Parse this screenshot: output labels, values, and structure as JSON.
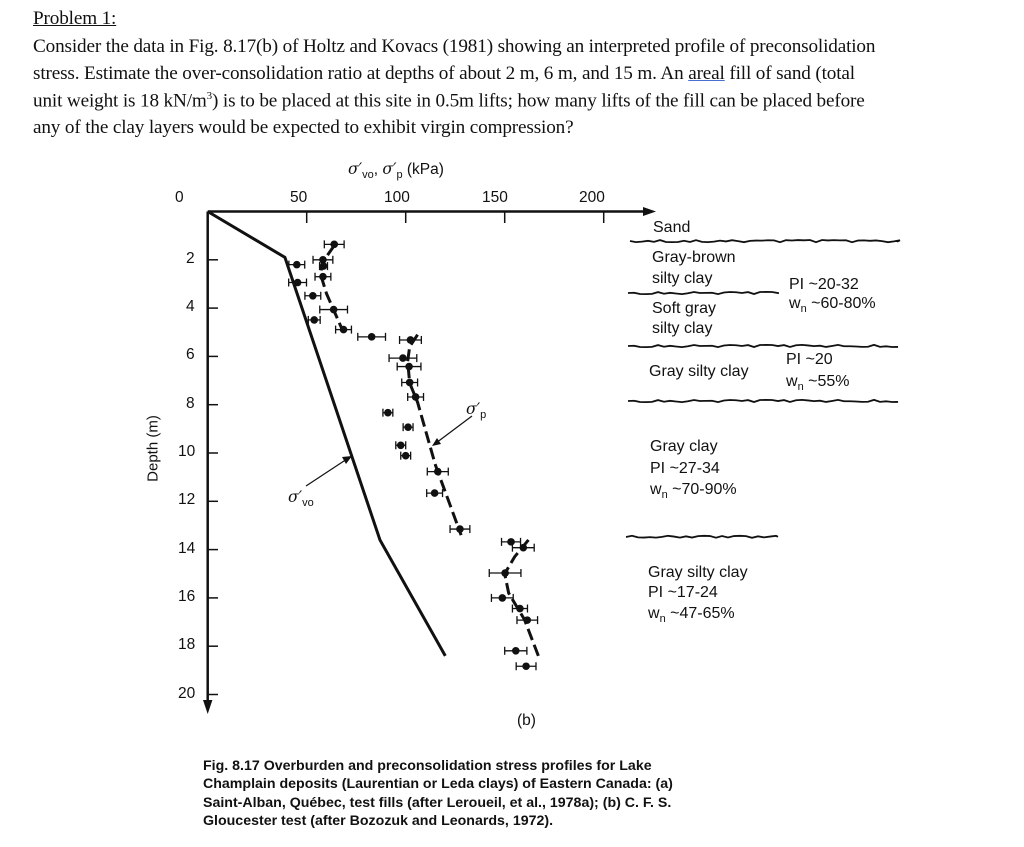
{
  "problem": {
    "title": "Problem 1:",
    "lines": [
      "Consider the data in Fig. 8.17(b) of Holtz and Kovacs (1981) showing an interpreted profile of preconsolidation",
      "stress.  Estimate the over-consolidation ratio at depths of about 2 m, 6 m, and 15 m.  An ",
      "unit weight is 18 kN/m",
      "any of the clay layers would be expected to exhibit virgin compression?"
    ],
    "line2_underlined": "areal",
    "line2_rest": " fill of sand (total",
    "line3_sup": "3",
    "line3_rest": ") is to be placed at this site in 0.5m lifts; how many lifts of the fill can be placed before"
  },
  "figure": {
    "axis_title": {
      "sym1": "σ′",
      "sub1": "vo",
      "sep": ", ",
      "sym2": "σ′",
      "sub2": "p",
      "unit": " (kPa)"
    },
    "x_ticks": [
      "0",
      "50",
      "100",
      "150",
      "200"
    ],
    "y_ticks": [
      "2",
      "4",
      "6",
      "8",
      "10",
      "12",
      "14",
      "16",
      "18",
      "20"
    ],
    "y_label": "Depth (m)",
    "curve_labels": {
      "sigma_p": {
        "sym": "σ′",
        "sub": "p"
      },
      "sigma_vo": {
        "sym": "σ′",
        "sub": "vo"
      }
    },
    "panel_label": "(b)",
    "layers": [
      {
        "name": [
          "Sand"
        ]
      },
      {
        "name": [
          "Gray-brown",
          "silty clay"
        ]
      },
      {
        "name": [
          "Soft gray",
          "silty clay"
        ]
      },
      {
        "name": [
          "Gray silty clay"
        ]
      },
      {
        "name": [
          "Gray clay"
        ],
        "pi": "PI ~27-34",
        "wn": "~70-90%"
      },
      {
        "name": [
          "Gray silty clay"
        ],
        "pi": "PI ~17-24",
        "wn": "~47-65%"
      }
    ],
    "props_upper": {
      "pi": "PI ~20-32",
      "wn": "~60-80%"
    },
    "props_mid": {
      "pi": "PI ~20",
      "wn": "~55%"
    },
    "wn_symbol": "w",
    "wn_sub": "n",
    "caption": [
      "Fig. 8.17    Overburden and preconsolidation stress profiles for Lake",
      "Champlain deposits (Laurentian or Leda clays) of Eastern Canada: (a)",
      "Saint-Alban, Québec, test fills (after Leroueil, et al., 1978a); (b) C. F. S.",
      "Gloucester test (after Bozozuk and Leonards, 1972)."
    ]
  },
  "chart_data": {
    "type": "scatter",
    "xlabel": "σ′vo, σ′p (kPa)",
    "ylabel": "Depth (m)",
    "xlim": [
      0,
      220
    ],
    "ylim": [
      20,
      0
    ],
    "x_axis_position": "top",
    "grid": false,
    "series": [
      {
        "name": "σ′vo",
        "kind": "line",
        "points": [
          [
            0,
            0
          ],
          [
            39,
            1.9
          ],
          [
            87,
            13.6
          ],
          [
            120,
            18.4
          ]
        ]
      },
      {
        "name": "σ′p",
        "kind": "dashed-line",
        "segments": [
          [
            [
              64,
              1.4
            ],
            [
              58,
              2.1
            ],
            [
              57,
              2.6
            ],
            [
              60,
              3.4
            ],
            [
              68,
              4.9
            ]
          ],
          [
            [
              106,
              5.1
            ],
            [
              102,
              5.6
            ],
            [
              101,
              6.2
            ],
            [
              102,
              7.1
            ],
            [
              106,
              7.9
            ],
            [
              115,
              10.5
            ],
            [
              128,
              13.4
            ]
          ],
          [
            [
              162,
              13.6
            ],
            [
              155,
              14.3
            ],
            [
              150,
              15.0
            ],
            [
              152,
              15.8
            ],
            [
              160,
              16.9
            ],
            [
              167,
              18.4
            ]
          ]
        ]
      },
      {
        "kind": "points-with-error-bars",
        "points": [
          {
            "x": 63.9,
            "y": 1.36,
            "xerr": 5
          },
          {
            "x": 45,
            "y": 2.2,
            "xerr": 4
          },
          {
            "x": 58.2,
            "y": 2.0,
            "xerr": 5
          },
          {
            "x": 58.5,
            "y": 2.26,
            "xerr": 2
          },
          {
            "x": 58.2,
            "y": 2.7,
            "xerr": 4
          },
          {
            "x": 45.4,
            "y": 2.94,
            "xerr": 4.5
          },
          {
            "x": 53.1,
            "y": 3.49,
            "xerr": 4
          },
          {
            "x": 63.6,
            "y": 4.06,
            "xerr": 7
          },
          {
            "x": 53.8,
            "y": 4.49,
            "xerr": 3
          },
          {
            "x": 68.6,
            "y": 4.89,
            "xerr": 4
          },
          {
            "x": 82.8,
            "y": 5.19,
            "xerr": 7
          },
          {
            "x": 102.4,
            "y": 5.32,
            "xerr": 5.5
          },
          {
            "x": 98.6,
            "y": 6.07,
            "xerr": 7
          },
          {
            "x": 101.7,
            "y": 6.42,
            "xerr": 6
          },
          {
            "x": 102,
            "y": 7.08,
            "xerr": 4
          },
          {
            "x": 105,
            "y": 7.68,
            "xerr": 4
          },
          {
            "x": 91,
            "y": 8.33,
            "xerr": 2.5
          },
          {
            "x": 101.2,
            "y": 8.93,
            "xerr": 2.5
          },
          {
            "x": 97.5,
            "y": 9.68,
            "xerr": 2.5
          },
          {
            "x": 100,
            "y": 10.11,
            "xerr": 2.5
          },
          {
            "x": 116.2,
            "y": 10.77,
            "xerr": 5.3
          },
          {
            "x": 114.6,
            "y": 11.66,
            "xerr": 4
          },
          {
            "x": 127.4,
            "y": 13.15,
            "xerr": 5
          },
          {
            "x": 153.2,
            "y": 13.68,
            "xerr": 4.8
          },
          {
            "x": 159.4,
            "y": 13.92,
            "xerr": 5.5
          },
          {
            "x": 150.2,
            "y": 14.97,
            "xerr": 8
          },
          {
            "x": 148.8,
            "y": 16.0,
            "xerr": 5.5
          },
          {
            "x": 157.7,
            "y": 16.44,
            "xerr": 3.8
          },
          {
            "x": 161.4,
            "y": 16.92,
            "xerr": 5.2
          },
          {
            "x": 155.6,
            "y": 18.19,
            "xerr": 5.6
          },
          {
            "x": 160.8,
            "y": 18.83,
            "xerr": 5
          }
        ]
      }
    ]
  }
}
